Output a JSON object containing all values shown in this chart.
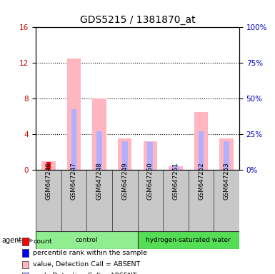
{
  "title": "GDS5215 / 1381870_at",
  "samples": [
    "GSM647246",
    "GSM647247",
    "GSM647248",
    "GSM647249",
    "GSM647250",
    "GSM647251",
    "GSM647252",
    "GSM647253"
  ],
  "groups": [
    "control",
    "control",
    "control",
    "control",
    "hydrogen-saturated water",
    "hydrogen-saturated water",
    "hydrogen-saturated water",
    "hydrogen-saturated water"
  ],
  "group_labels": [
    "control",
    "hydrogen-saturated water"
  ],
  "group_colors": [
    "#90EE90",
    "#55DD55"
  ],
  "absent_value": [
    1.0,
    12.5,
    8.0,
    3.5,
    3.2,
    0.4,
    6.5,
    3.5
  ],
  "absent_rank": [
    0.0,
    6.8,
    4.3,
    3.2,
    3.1,
    0.45,
    4.3,
    3.2
  ],
  "present_value": [
    0.9,
    0.0,
    0.0,
    0.0,
    0.0,
    0.0,
    0.0,
    0.0
  ],
  "present_rank": [
    0.0,
    0.0,
    0.0,
    0.0,
    0.0,
    0.0,
    0.0,
    0.0
  ],
  "ylim_left": [
    0,
    16
  ],
  "ylim_right": [
    0,
    100
  ],
  "yticks_left": [
    0,
    4,
    8,
    12,
    16
  ],
  "yticks_right": [
    0,
    25,
    50,
    75,
    100
  ],
  "ylabel_left_color": "#CC0000",
  "ylabel_right_color": "#0000CC",
  "absent_value_color": "#FFB6C1",
  "absent_rank_color": "#B0B0FF",
  "present_value_color": "#FF0000",
  "present_rank_color": "#0000FF",
  "sample_bg_color": "#C8C8C8",
  "plot_bg": "#FFFFFF",
  "legend_items": [
    "count",
    "percentile rank within the sample",
    "value, Detection Call = ABSENT",
    "rank, Detection Call = ABSENT"
  ],
  "legend_colors": [
    "#FF0000",
    "#0000FF",
    "#FFB6C1",
    "#B0B0FF"
  ]
}
